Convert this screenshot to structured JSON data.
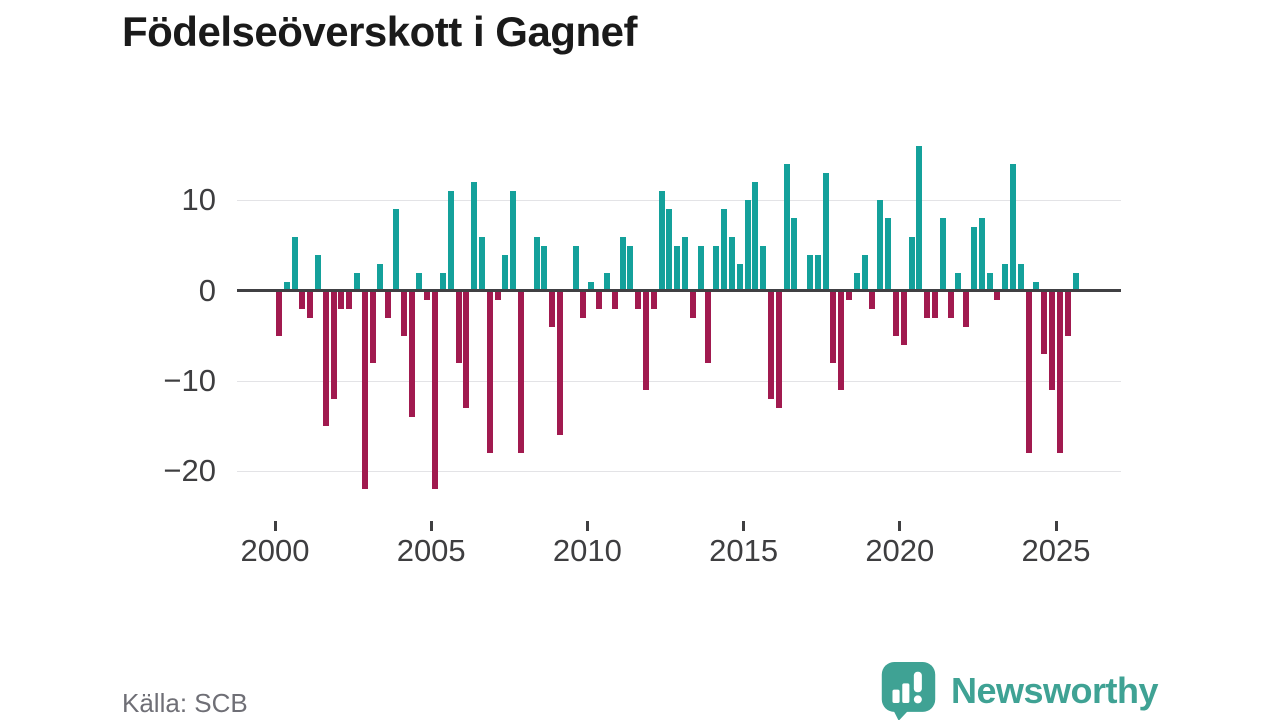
{
  "title": "Födelseöverskott i Gagnef",
  "footer": {
    "source": "Källa: SCB",
    "brand_name": "Newsworthy"
  },
  "colors": {
    "positive": "#14a19b",
    "negative": "#a11a4f",
    "grid": "#e3e3e6",
    "zero_axis": "#404043",
    "axis_text": "#3e3e40",
    "source_text": "#6f6f76",
    "brand": "#3fa294"
  },
  "chart_data": {
    "type": "bar",
    "title": "Födelseöverskott i Gagnef",
    "frequency": "quarterly",
    "x_start_year": 2000,
    "x_end": "2025 Q3",
    "y_ticks": [
      10,
      0,
      -10,
      -20
    ],
    "x_ticks": [
      2000,
      2005,
      2010,
      2015,
      2020,
      2025
    ],
    "ylim": [
      -23,
      17
    ],
    "grid": true,
    "legend": "none",
    "years": [
      {
        "year": 2000,
        "q": [
          -5,
          1,
          6,
          -2
        ]
      },
      {
        "year": 2001,
        "q": [
          -3,
          4,
          -15,
          -12
        ]
      },
      {
        "year": 2002,
        "q": [
          -2,
          -2,
          2,
          -22
        ]
      },
      {
        "year": 2003,
        "q": [
          -8,
          3,
          -3,
          9
        ]
      },
      {
        "year": 2004,
        "q": [
          -5,
          -14,
          2,
          -1
        ]
      },
      {
        "year": 2005,
        "q": [
          -22,
          2,
          11,
          -8
        ]
      },
      {
        "year": 2006,
        "q": [
          -13,
          12,
          6,
          -18
        ]
      },
      {
        "year": 2007,
        "q": [
          -1,
          4,
          11,
          -18
        ]
      },
      {
        "year": 2008,
        "q": [
          0,
          6,
          5,
          -4
        ]
      },
      {
        "year": 2009,
        "q": [
          -16,
          0,
          5,
          -3
        ]
      },
      {
        "year": 2010,
        "q": [
          1,
          -2,
          2,
          -2
        ]
      },
      {
        "year": 2011,
        "q": [
          6,
          5,
          -2,
          -11
        ]
      },
      {
        "year": 2012,
        "q": [
          -2,
          11,
          9,
          5
        ]
      },
      {
        "year": 2013,
        "q": [
          6,
          -3,
          5,
          -8
        ]
      },
      {
        "year": 2014,
        "q": [
          5,
          9,
          6,
          3
        ]
      },
      {
        "year": 2015,
        "q": [
          10,
          12,
          5,
          -12
        ]
      },
      {
        "year": 2016,
        "q": [
          -13,
          14,
          8,
          0
        ]
      },
      {
        "year": 2017,
        "q": [
          4,
          4,
          13,
          -8
        ]
      },
      {
        "year": 2018,
        "q": [
          -11,
          -1,
          2,
          4
        ]
      },
      {
        "year": 2019,
        "q": [
          -2,
          10,
          8,
          -5
        ]
      },
      {
        "year": 2020,
        "q": [
          -6,
          6,
          16,
          -3
        ]
      },
      {
        "year": 2021,
        "q": [
          -3,
          8,
          -3,
          2
        ]
      },
      {
        "year": 2022,
        "q": [
          -4,
          7,
          8,
          2
        ]
      },
      {
        "year": 2023,
        "q": [
          -1,
          3,
          14,
          3
        ]
      },
      {
        "year": 2024,
        "q": [
          -18,
          1,
          -7,
          -11
        ]
      },
      {
        "year": 2025,
        "q": [
          -18,
          -5,
          2
        ]
      }
    ]
  }
}
